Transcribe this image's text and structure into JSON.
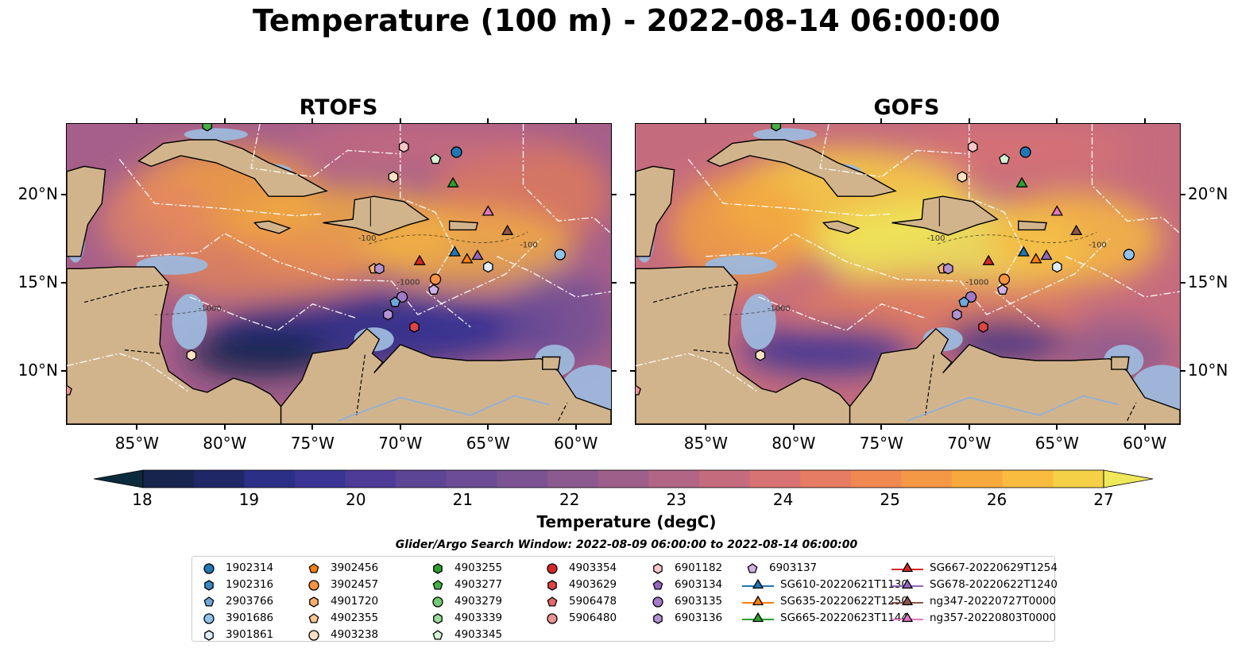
{
  "title": "Temperature (100 m) - 2022-08-14 06:00:00",
  "panels": [
    {
      "title": "RTOFS",
      "palette": "rtofs"
    },
    {
      "title": "GOFS",
      "palette": "gofs"
    }
  ],
  "map": {
    "lon_range": [
      -89,
      -58
    ],
    "lat_range": [
      7,
      24
    ],
    "lon_ticks": [
      "85°W",
      "80°W",
      "75°W",
      "70°W",
      "65°W",
      "60°W"
    ],
    "lat_ticks": [
      "20°N",
      "15°N",
      "10°N"
    ],
    "contour_labels": [
      "-100",
      "-1000"
    ],
    "colors": {
      "land": "#d2b48c",
      "shelf": "#9db8dc",
      "deep_land": "#0a2a3a",
      "eez": "#ffffff",
      "borders": "#000000"
    }
  },
  "colorbar": {
    "label": "Temperature (degC)",
    "ticks": [
      "18",
      "19",
      "20",
      "21",
      "22",
      "23",
      "24",
      "25",
      "26",
      "27"
    ],
    "colors": [
      "#0c2a3c",
      "#17244e",
      "#202767",
      "#2c2f86",
      "#3a3494",
      "#4d3b97",
      "#5d4596",
      "#6b4c95",
      "#7b5392",
      "#8c5a8e",
      "#9e5f8a",
      "#b26585",
      "#c56b7e",
      "#d87373",
      "#e67c63",
      "#f08852",
      "#f59846",
      "#f8a93e",
      "#f9bc3f",
      "#f5d147",
      "#eee85a"
    ]
  },
  "search_window": "Glider/Argo Search Window: 2022-08-09 06:00:00 to 2022-08-14 06:00:00",
  "legend": {
    "columns": [
      [
        {
          "label": "1902314",
          "shape": "circle",
          "color": "#1f77b4"
        },
        {
          "label": "1902316",
          "shape": "hexagon",
          "color": "#3a88c4"
        },
        {
          "label": "2903766",
          "shape": "pentagon",
          "color": "#6fa9db"
        },
        {
          "label": "3901686",
          "shape": "circle",
          "color": "#8fc3ec"
        },
        {
          "label": "3901861",
          "shape": "hexagon",
          "color": "#dcecfa"
        }
      ],
      [
        {
          "label": "3902456",
          "shape": "pentagon",
          "color": "#ff7f0e"
        },
        {
          "label": "3902457",
          "shape": "circle",
          "color": "#fd9241"
        },
        {
          "label": "4901720",
          "shape": "hexagon",
          "color": "#fbae6b"
        },
        {
          "label": "4902355",
          "shape": "pentagon",
          "color": "#fcc794"
        },
        {
          "label": "4903238",
          "shape": "circle",
          "color": "#fee2c2"
        }
      ],
      [
        {
          "label": "4903255",
          "shape": "hexagon",
          "color": "#2ca02c"
        },
        {
          "label": "4903277",
          "shape": "pentagon",
          "color": "#43b043"
        },
        {
          "label": "4903279",
          "shape": "circle",
          "color": "#74c974"
        },
        {
          "label": "4903339",
          "shape": "hexagon",
          "color": "#9bdc9b"
        },
        {
          "label": "4903345",
          "shape": "pentagon",
          "color": "#d5f5d5"
        }
      ],
      [
        {
          "label": "4903354",
          "shape": "circle",
          "color": "#d62728"
        },
        {
          "label": "4903629",
          "shape": "hexagon",
          "color": "#dc4545"
        },
        {
          "label": "5906478",
          "shape": "pentagon",
          "color": "#e46a6a"
        },
        {
          "label": "5906480",
          "shape": "circle",
          "color": "#ee9292"
        }
      ],
      [
        {
          "label": "6901182",
          "shape": "hexagon",
          "color": "#f8c7c7"
        },
        {
          "label": "6903134",
          "shape": "pentagon",
          "color": "#9467bd"
        },
        {
          "label": "6903135",
          "shape": "circle",
          "color": "#a27ac8"
        },
        {
          "label": "6903136",
          "shape": "hexagon",
          "color": "#b392d4"
        }
      ],
      [
        {
          "label": "6903137",
          "shape": "pentagon",
          "color": "#cdb3e6"
        },
        {
          "label": "SG610-20220621T1130",
          "shape": "triangle",
          "color": "#1f77b4",
          "line": true
        },
        {
          "label": "SG635-20220622T1250",
          "shape": "triangle",
          "color": "#ff7f0e",
          "line": true
        },
        {
          "label": "SG665-20220623T1144",
          "shape": "triangle",
          "color": "#2ca02c",
          "line": true
        }
      ],
      [
        {
          "label": "SG667-20220629T1254",
          "shape": "triangle",
          "color": "#d62728",
          "line": true
        },
        {
          "label": "SG678-20220622T1240",
          "shape": "triangle",
          "color": "#9467bd",
          "line": true
        },
        {
          "label": "ng347-20220727T0000",
          "shape": "triangle",
          "color": "#8c564b",
          "line": true
        },
        {
          "label": "ng357-20220803T0000",
          "shape": "triangle",
          "color": "#e377c2",
          "line": true
        }
      ]
    ]
  },
  "markers": [
    {
      "lon": -66.8,
      "lat": 22.4,
      "shape": "circle",
      "color": "#1f77b4"
    },
    {
      "lon": -69.8,
      "lat": 22.7,
      "shape": "hexagon",
      "color": "#f8c7c7"
    },
    {
      "lon": -68.0,
      "lat": 22.0,
      "shape": "pentagon",
      "color": "#d5f5d5"
    },
    {
      "lon": -70.4,
      "lat": 21.0,
      "shape": "hexagon",
      "color": "#fee2c2"
    },
    {
      "lon": -67.0,
      "lat": 20.6,
      "shape": "triangle",
      "color": "#2ca02c"
    },
    {
      "lon": -65.0,
      "lat": 19.0,
      "shape": "triangle",
      "color": "#e377c2"
    },
    {
      "lon": -63.9,
      "lat": 17.9,
      "shape": "triangle",
      "color": "#8c564b"
    },
    {
      "lon": -66.9,
      "lat": 16.7,
      "shape": "triangle",
      "color": "#1f77b4"
    },
    {
      "lon": -65.6,
      "lat": 16.5,
      "shape": "triangle",
      "color": "#9467bd"
    },
    {
      "lon": -66.2,
      "lat": 16.3,
      "shape": "triangle",
      "color": "#ff7f0e"
    },
    {
      "lon": -68.9,
      "lat": 16.2,
      "shape": "triangle",
      "color": "#d62728"
    },
    {
      "lon": -65.0,
      "lat": 15.9,
      "shape": "hexagon",
      "color": "#dcecfa"
    },
    {
      "lon": -60.9,
      "lat": 16.6,
      "shape": "circle",
      "color": "#8fc3ec"
    },
    {
      "lon": -71.5,
      "lat": 15.8,
      "shape": "pentagon",
      "color": "#fbae6b"
    },
    {
      "lon": -71.2,
      "lat": 15.8,
      "shape": "hexagon",
      "color": "#b392d4"
    },
    {
      "lon": -68.0,
      "lat": 15.2,
      "shape": "circle",
      "color": "#fd9241"
    },
    {
      "lon": -68.1,
      "lat": 14.6,
      "shape": "pentagon",
      "color": "#cdb3e6"
    },
    {
      "lon": -69.9,
      "lat": 14.2,
      "shape": "circle",
      "color": "#a27ac8"
    },
    {
      "lon": -70.3,
      "lat": 13.9,
      "shape": "pentagon",
      "color": "#6fa9db"
    },
    {
      "lon": -70.7,
      "lat": 13.2,
      "shape": "hexagon",
      "color": "#b392d4"
    },
    {
      "lon": -69.2,
      "lat": 12.5,
      "shape": "hexagon",
      "color": "#dc4545"
    },
    {
      "lon": -81.9,
      "lat": 10.9,
      "shape": "hexagon",
      "color": "#fee2c2"
    },
    {
      "lon": -89.0,
      "lat": 8.9,
      "shape": "pentagon",
      "color": "#ee9292"
    },
    {
      "lon": -81.0,
      "lat": 23.9,
      "shape": "hexagon",
      "color": "#43b043"
    }
  ]
}
